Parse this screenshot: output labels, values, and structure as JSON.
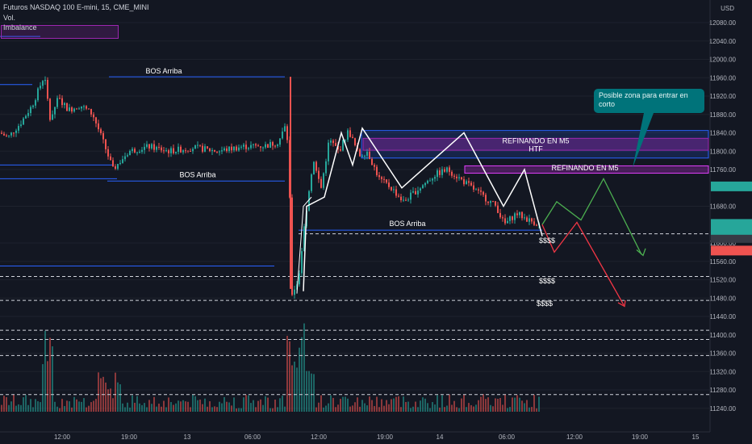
{
  "header": {
    "symbol_title": "Futuros NASDAQ 100 E-mini, 15, CME_MINI",
    "volume_label": "Vol.",
    "indicator_label": "Imbalance"
  },
  "price_axis": {
    "currency": "USD",
    "ticks": [
      "12080.00",
      "12040.00",
      "12000.00",
      "11960.00",
      "11920.00",
      "11880.00",
      "11840.00",
      "11800.00",
      "11760.00",
      "11680.00",
      "11600.00",
      "11560.00",
      "11520.00",
      "11480.00",
      "11440.00",
      "11400.00",
      "11360.00",
      "11320.00",
      "11280.00",
      "11240.00"
    ],
    "badges": {
      "last_price": "11723.25",
      "current": "11641.50",
      "countdown": "12:56",
      "level": "11639.00",
      "bid": "11634.50"
    }
  },
  "time_axis": {
    "ticks": [
      "12:00",
      "19:00",
      "13",
      "06:00",
      "12:00",
      "19:00",
      "14",
      "06:00",
      "12:00",
      "19:00",
      "15"
    ]
  },
  "annotations": {
    "bos_1": "BOS Arriba",
    "bos_2": "BOS Arriba",
    "bos_3": "BOS Arriba",
    "refine_1": "REFINANDO EN M5",
    "refine_1_tag": "HTF",
    "refine_2": "REFINANDO EN M5",
    "liquidity_1": "$$$$",
    "liquidity_2": "$$$$",
    "liquidity_3": "$$$$",
    "callout": "Posible zona para entrar en corto"
  },
  "colors": {
    "background": "#131722",
    "up": "#26a69a",
    "down": "#ef5350",
    "zone_blue": "#2962ff",
    "zone_purple": "#9c27b0",
    "projection_bull": "#4caf50",
    "projection_bear": "#f23645",
    "swing_line": "#ffffff",
    "callout": "#00737a"
  },
  "chart_data": {
    "type": "candlestick",
    "symbol": "Futuros NASDAQ 100 E-mini",
    "interval": "15",
    "exchange": "CME_MINI",
    "currency": "USD",
    "ylim": [
      11220,
      12120
    ],
    "x": [
      "12:00",
      "19:00",
      "13",
      "06:00",
      "12:00",
      "19:00",
      "14",
      "06:00",
      "12:00",
      "19:00",
      "15"
    ],
    "last_price": 11641.5,
    "price_labels": [
      11723.25,
      11641.5,
      11639.0,
      11634.5
    ],
    "swing_path_prices": [
      11495,
      11680,
      11700,
      11840,
      11770,
      11850,
      11720,
      11840,
      11680,
      11760,
      11615,
      11665,
      11640
    ],
    "projection_bull": [
      11640,
      11690,
      11650,
      11740,
      11575
    ],
    "projection_bear": [
      11640,
      11580,
      11645,
      11465
    ],
    "horizontal_levels": [
      11620,
      11527,
      11475,
      11410,
      11390,
      11355,
      11270
    ],
    "zones": [
      {
        "label": "REFINANDO EN M5",
        "tag": "HTF",
        "range": [
          11785,
          11840
        ]
      },
      {
        "label": "REFINANDO EN M5",
        "range": [
          11752,
          11768
        ]
      }
    ]
  }
}
